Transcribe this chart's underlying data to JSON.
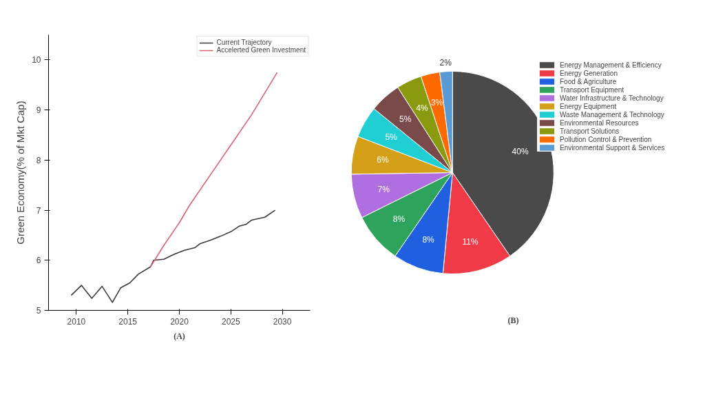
{
  "chart_data": [
    {
      "type": "line",
      "ylabel": "Green Economy(% of Mkt Cap)",
      "xlim": [
        2007.3,
        2032.7
      ],
      "ylim": [
        5,
        10.5
      ],
      "xticks": [
        2010,
        2015,
        2020,
        2025,
        2030
      ],
      "yticks": [
        5,
        6,
        7,
        8,
        9,
        10
      ],
      "legend": "top right",
      "annotations": [
        "(A)"
      ],
      "series": [
        {
          "name": "Current Trajectory",
          "color": "#3a3a3a",
          "x": [
            2009.5,
            2010.5,
            2011.5,
            2012.5,
            2013.5,
            2014.3,
            2015.2,
            2016,
            2017.2,
            2017.5,
            2018.5,
            2019.5,
            2020.5,
            2021.5,
            2022,
            2023,
            2024,
            2025,
            2025.8,
            2026.5,
            2027,
            2028.3,
            2029.3
          ],
          "values": [
            5.3,
            5.5,
            5.24,
            5.48,
            5.16,
            5.45,
            5.55,
            5.72,
            5.87,
            6.0,
            6.02,
            6.12,
            6.2,
            6.25,
            6.33,
            6.4,
            6.48,
            6.57,
            6.68,
            6.72,
            6.8,
            6.86,
            7.0
          ]
        },
        {
          "name": "Accelerted Green Investment",
          "color": "#d9646e",
          "x": [
            2017.2,
            2018.5,
            2020,
            2021,
            2023,
            2025,
            2027,
            2029.5
          ],
          "values": [
            5.87,
            6.3,
            6.75,
            7.1,
            7.7,
            8.3,
            8.9,
            9.75
          ]
        }
      ]
    },
    {
      "type": "pie",
      "legend": "right",
      "value_labels": [
        "40%",
        "11%",
        "8%",
        "8%",
        "7%",
        "6%",
        "5%",
        "5%",
        "4%",
        "3%",
        "2%"
      ],
      "annotations": [
        "(B)"
      ],
      "categories": [
        "Energy Management & Efficiency",
        "Energy Generation",
        "Food & Agriculture",
        "Transport Equipment",
        "Water Infrastructure & Technology",
        "Energy Equipment",
        "Waste Management & Technology",
        "Environmental Resources",
        "Transport Solutions",
        "Pollution Control & Prevention",
        "Environmental Support & Services"
      ],
      "values": [
        40,
        11,
        8,
        8,
        7,
        6,
        5,
        5,
        4,
        3,
        2
      ],
      "colors": [
        "#4a4a4a",
        "#f03a47",
        "#1f5fe0",
        "#2ea35c",
        "#b06fe0",
        "#d4a017",
        "#1fcfd4",
        "#7a4a4a",
        "#8a9a0f",
        "#ff6a00",
        "#5a9bd5"
      ]
    }
  ]
}
